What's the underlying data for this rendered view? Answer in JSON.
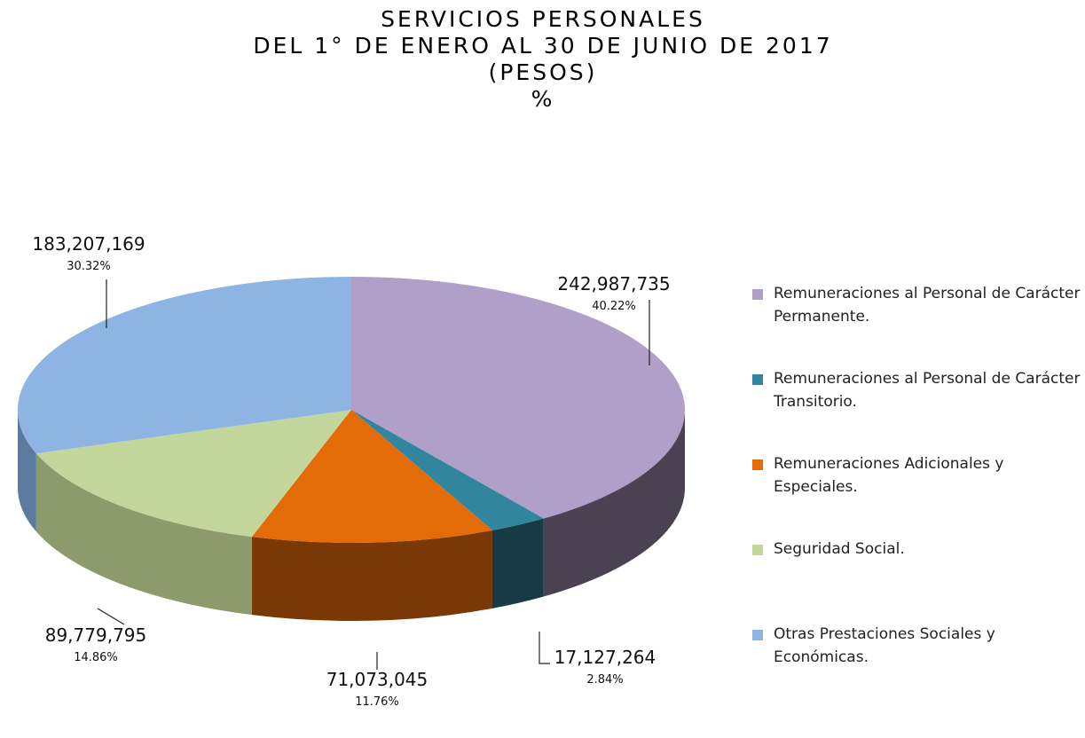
{
  "chart_data": {
    "type": "pie3d",
    "title": "SERVICIOS PERSONALES",
    "subtitle": [
      "DEL 1° DE ENERO AL 30 DE JUNIO DE 2017",
      "(PESOS)",
      "%"
    ],
    "categories": [
      "Remuneraciones al Personal de Carácter Permanente.",
      "Remuneraciones al Personal de Carácter Transitorio.",
      "Remuneraciones Adicionales y Especiales.",
      "Seguridad Social.",
      "Otras Prestaciones Sociales y Económicas."
    ],
    "values": [
      242987735,
      17127264,
      71073045,
      89779795,
      183207169
    ],
    "value_labels": [
      "242,987,735",
      "17,127,264",
      "71,073,045",
      "89,779,795",
      "183,207,169"
    ],
    "percentages": [
      40.22,
      2.84,
      11.76,
      14.86,
      30.32
    ],
    "percentage_labels": [
      "40.22%",
      "2.84%",
      "11.76%",
      "14.86%",
      "30.32%"
    ],
    "colors": [
      "#b09fc8",
      "#31859c",
      "#e36c09",
      "#c3d69b",
      "#8eb4e3"
    ],
    "side_colors": [
      "#4a4152",
      "#173a44",
      "#7a3806",
      "#8c9a6c",
      "#5c7a9e"
    ],
    "legend": "right"
  }
}
